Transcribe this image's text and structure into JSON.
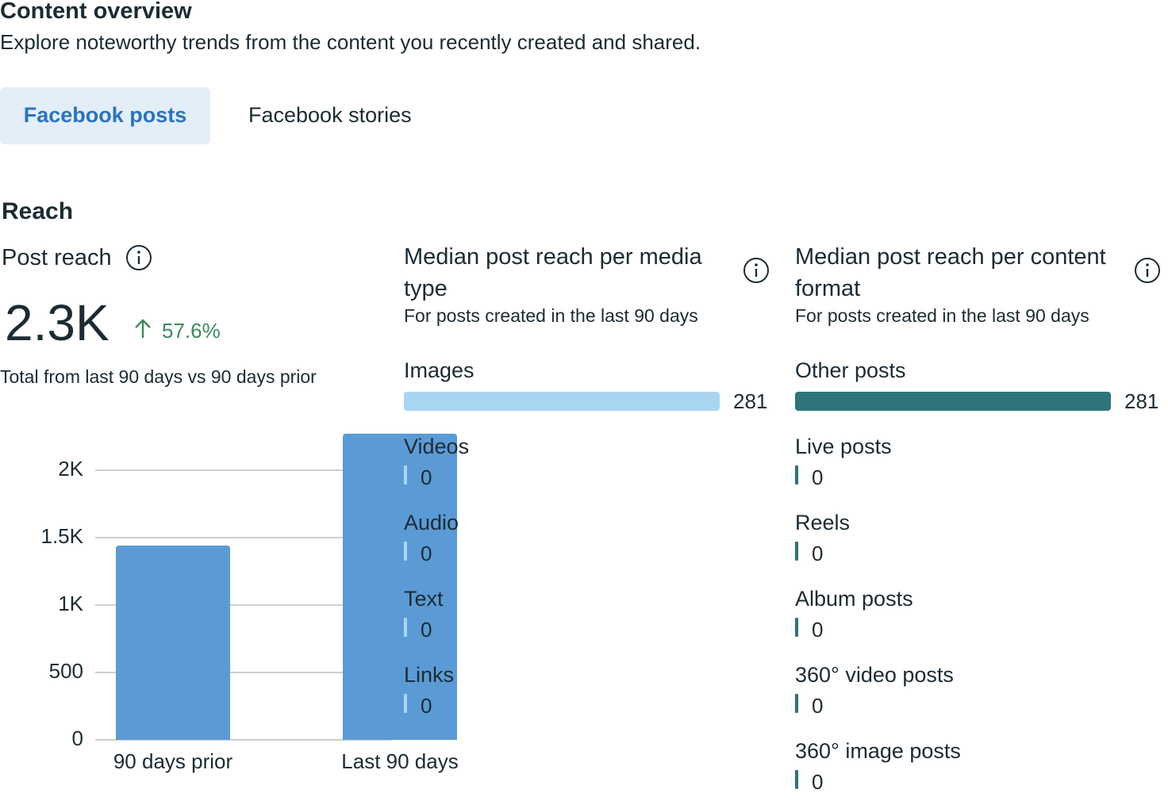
{
  "header": {
    "title": "Content overview",
    "subtitle": "Explore noteworthy trends from the content you recently created and shared."
  },
  "tabs": [
    "Facebook posts",
    "Facebook stories"
  ],
  "reach": {
    "title": "Reach",
    "post_reach": {
      "label": "Post reach",
      "value": "2.3K",
      "change": "57.6%",
      "note": "Total from last 90 days vs 90 days prior"
    }
  },
  "chart_data": [
    {
      "type": "bar",
      "categories": [
        "90 days prior",
        "Last 90 days"
      ],
      "values": [
        1441,
        2271
      ],
      "color": "#5b9bd5",
      "ylim": [
        0,
        2300
      ],
      "yticks": [
        0,
        500,
        {
          "value": 1000,
          "label": "1K"
        },
        {
          "value": 1500,
          "label": "1.5K"
        },
        {
          "value": 2000,
          "label": "2K"
        }
      ],
      "grid": true
    },
    {
      "type": "hbar",
      "title": "Median post reach per media type",
      "subtitle": "For posts created in the last 90 days",
      "categories": [
        "Images",
        "Videos",
        "Audio",
        "Text",
        "Links"
      ],
      "values": [
        281,
        0,
        0,
        0,
        0
      ],
      "color": "#a8d5f2"
    },
    {
      "type": "hbar",
      "title": "Median post reach per content format",
      "subtitle": "For posts created in the last 90 days",
      "categories": [
        "Other posts",
        "Live posts",
        "Reels",
        "Album posts",
        "360° video posts",
        "360° image posts"
      ],
      "values": [
        281,
        0,
        0,
        0,
        0,
        0
      ],
      "color": "#2f7479"
    }
  ]
}
